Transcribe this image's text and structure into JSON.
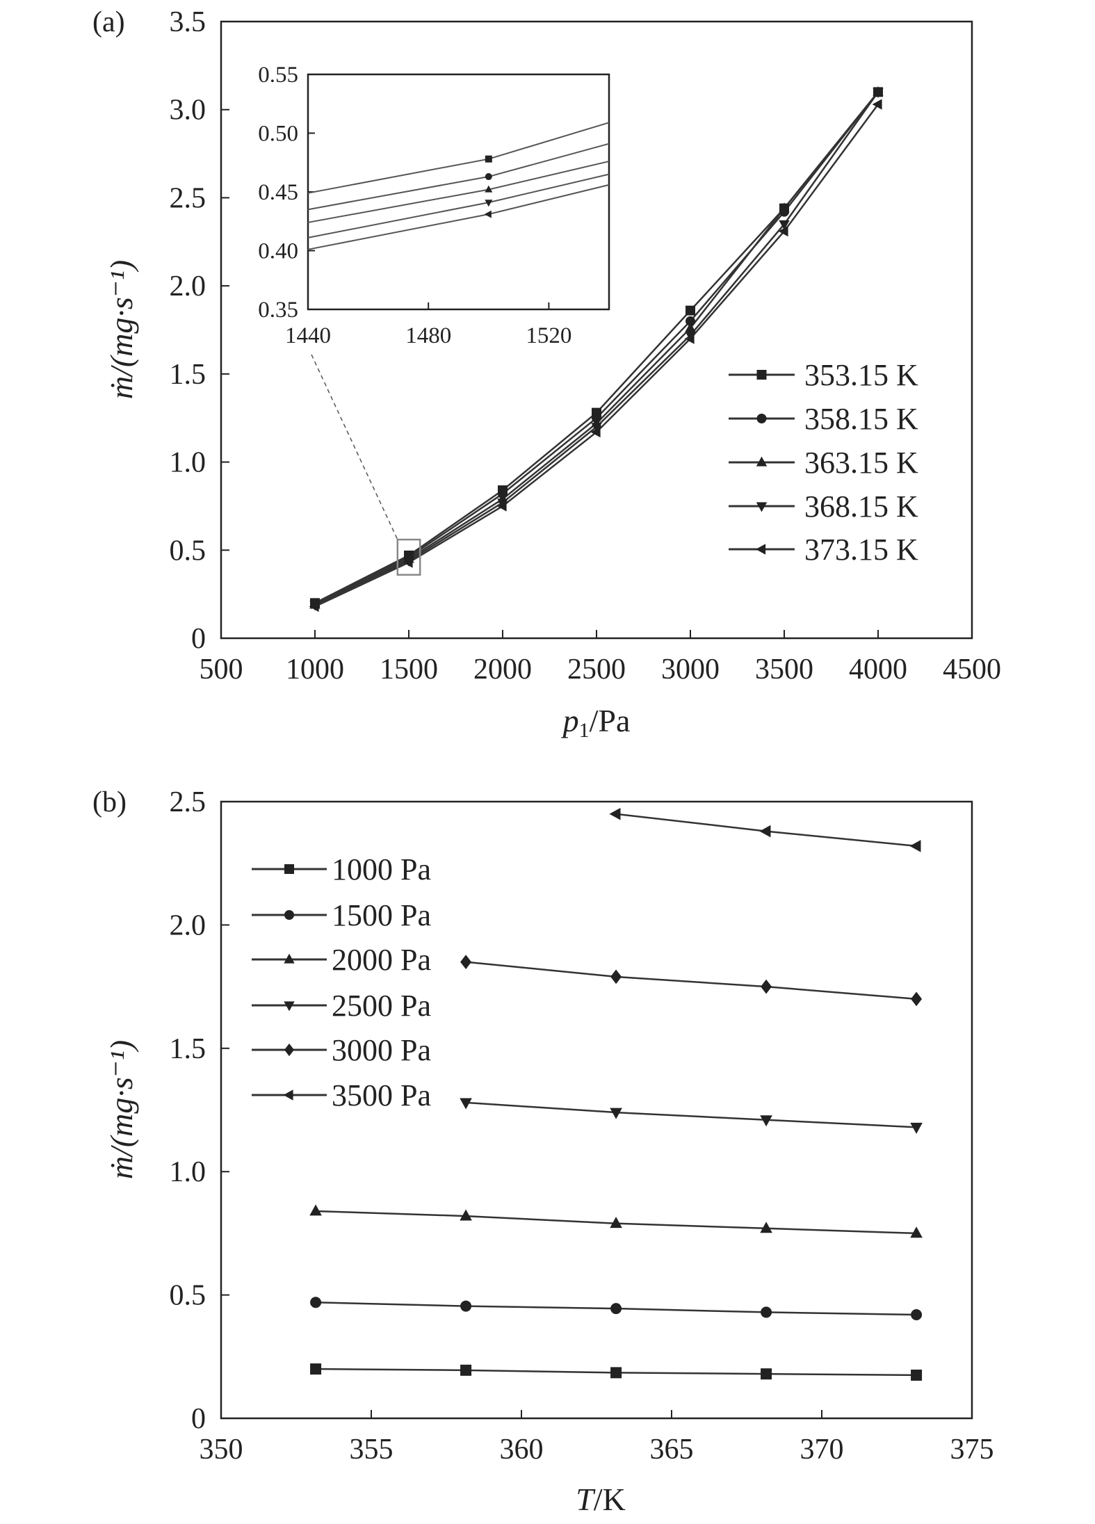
{
  "chart_data": [
    {
      "type": "line",
      "panel_label": "(a)",
      "xlabel_var": "p",
      "xlabel_sub": "1",
      "xlabel_unit": "/Pa",
      "ylabel": "ṁ/(mg·s⁻¹)",
      "xlim": [
        500,
        4500
      ],
      "ylim": [
        0,
        3.5
      ],
      "xticks": [
        500,
        1000,
        1500,
        2000,
        2500,
        3000,
        3500,
        4000,
        4500
      ],
      "yticks": [
        0,
        0.5,
        1.0,
        1.5,
        2.0,
        2.5,
        3.0,
        3.5
      ],
      "ytick_labels": [
        "0",
        "0.5",
        "1.0",
        "1.5",
        "2.0",
        "2.5",
        "3.0",
        "3.5"
      ],
      "legend_position": "right",
      "x": [
        1000,
        1500,
        2000,
        2500,
        3000,
        3500,
        4000
      ],
      "series": [
        {
          "name": "353.15 K",
          "marker": "square",
          "values": [
            0.2,
            0.47,
            0.84,
            1.28,
            1.86,
            2.44,
            3.1
          ]
        },
        {
          "name": "358.15 K",
          "marker": "circle",
          "values": [
            0.2,
            0.46,
            0.82,
            1.25,
            1.8,
            2.42,
            3.1
          ]
        },
        {
          "name": "363.15 K",
          "marker": "triangle-up",
          "values": [
            0.19,
            0.45,
            0.79,
            1.22,
            1.76,
            2.44,
            3.1
          ]
        },
        {
          "name": "368.15 K",
          "marker": "triangle-down",
          "values": [
            0.19,
            0.44,
            0.77,
            1.2,
            1.72,
            2.35,
            3.1
          ]
        },
        {
          "name": "373.15 K",
          "marker": "triangle-left",
          "values": [
            0.18,
            0.43,
            0.75,
            1.17,
            1.7,
            2.31,
            3.03
          ]
        }
      ],
      "zoom_region": {
        "x": [
          1440,
          1560
        ],
        "y": [
          0.36,
          0.56
        ]
      },
      "inset": {
        "xlim": [
          1440,
          1540
        ],
        "ylim": [
          0.35,
          0.55
        ],
        "xticks": [
          1440,
          1480,
          1520
        ],
        "yticks": [
          "0.35",
          "0.40",
          "0.45",
          "0.50",
          "0.55"
        ],
        "x": [
          1440,
          1500,
          1540
        ],
        "series": [
          {
            "name": "353.15 K",
            "values": [
              0.449,
              0.478,
              0.509
            ]
          },
          {
            "name": "358.15 K",
            "values": [
              0.435,
              0.463,
              0.491
            ]
          },
          {
            "name": "363.15 K",
            "values": [
              0.424,
              0.452,
              0.476
            ]
          },
          {
            "name": "368.15 K",
            "values": [
              0.411,
              0.441,
              0.465
            ]
          },
          {
            "name": "373.15 K",
            "values": [
              0.401,
              0.431,
              0.456
            ]
          }
        ]
      }
    },
    {
      "type": "line",
      "panel_label": "(b)",
      "xlabel_var": "T",
      "xlabel_unit": "/K",
      "ylabel": "ṁ/(mg·s⁻¹)",
      "xlim": [
        350,
        375
      ],
      "ylim": [
        0,
        2.5
      ],
      "xticks": [
        350,
        355,
        360,
        365,
        370,
        375
      ],
      "yticks": [
        0,
        0.5,
        1.0,
        1.5,
        2.0,
        2.5
      ],
      "ytick_labels": [
        "0",
        "0.5",
        "1.0",
        "1.5",
        "2.0",
        "2.5"
      ],
      "legend_position": "top-left",
      "series": [
        {
          "name": "1000 Pa",
          "marker": "square",
          "x": [
            353.15,
            358.15,
            363.15,
            368.15,
            373.15
          ],
          "values": [
            0.2,
            0.195,
            0.185,
            0.18,
            0.175
          ]
        },
        {
          "name": "1500 Pa",
          "marker": "circle",
          "x": [
            353.15,
            358.15,
            363.15,
            368.15,
            373.15
          ],
          "values": [
            0.47,
            0.455,
            0.445,
            0.43,
            0.42
          ]
        },
        {
          "name": "2000 Pa",
          "marker": "triangle-up",
          "x": [
            353.15,
            358.15,
            363.15,
            368.15,
            373.15
          ],
          "values": [
            0.84,
            0.82,
            0.79,
            0.77,
            0.75
          ]
        },
        {
          "name": "2500 Pa",
          "marker": "triangle-down",
          "x": [
            358.15,
            363.15,
            368.15,
            373.15
          ],
          "values": [
            1.28,
            1.24,
            1.21,
            1.18
          ]
        },
        {
          "name": "3000 Pa",
          "marker": "diamond",
          "x": [
            358.15,
            363.15,
            368.15,
            373.15
          ],
          "values": [
            1.85,
            1.79,
            1.75,
            1.7
          ]
        },
        {
          "name": "3500 Pa",
          "marker": "triangle-left",
          "x": [
            363.15,
            368.15,
            373.15
          ],
          "values": [
            2.45,
            2.38,
            2.32
          ]
        }
      ]
    }
  ]
}
